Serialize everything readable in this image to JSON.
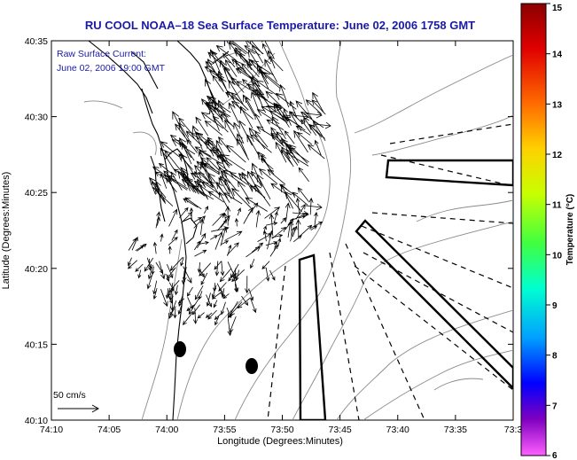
{
  "title": "RU COOL  NOAA–18  Sea Surface Temperature:  June 02, 2006 1758 GMT",
  "annotation": {
    "line1": "Raw Surface Current:",
    "line2": "June 02, 2006 19:00 GMT"
  },
  "scale_label": "50 cm/s",
  "xlabel": "Longitude (Degrees:Minutes)",
  "ylabel": "Latitude (Degrees:Minutes)",
  "x_ticks": [
    "74:10",
    "74:05",
    "74:00",
    "73:55",
    "73:50",
    "73:45",
    "73:40",
    "73:35",
    "73:3"
  ],
  "y_ticks": [
    "40:35",
    "40:30",
    "40:25",
    "40:20",
    "40:15",
    "40:10"
  ],
  "colorbar": {
    "label": "Temperature (°C)",
    "ticks": [
      "15",
      "14",
      "13",
      "12",
      "11",
      "10",
      "9",
      "8",
      "7",
      "6"
    ],
    "colors": [
      "#8b0000",
      "#e00000",
      "#ff6a00",
      "#ffd000",
      "#c8ff00",
      "#40ff40",
      "#00ffd0",
      "#00a0ff",
      "#0000ff",
      "#8000c0",
      "#ff60ff"
    ]
  },
  "colors": {
    "title": "#1a1aa8",
    "land": "#000000",
    "contour": "#888888"
  },
  "vectors_count": 420
}
